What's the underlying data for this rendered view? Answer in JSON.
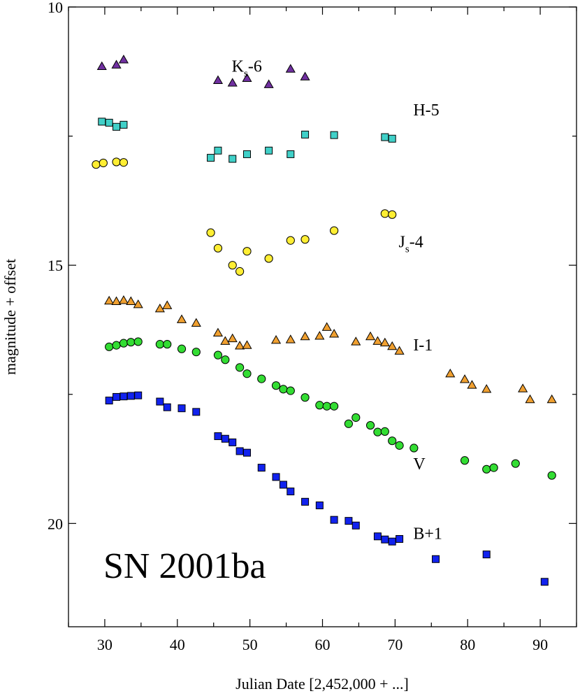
{
  "chart_data": {
    "type": "scatter",
    "title": "",
    "annotation": "SN 2001ba",
    "xlabel": "Julian Date [2,452,000 + ...]",
    "ylabel": "magnitude + offset",
    "xlim": [
      25,
      95
    ],
    "ylim": [
      22,
      10
    ],
    "y_inverted": true,
    "x_major_ticks": [
      30,
      40,
      50,
      60,
      70,
      80,
      90
    ],
    "x_tick_labels": [
      "30",
      "40",
      "50",
      "60",
      "70",
      "80",
      "90"
    ],
    "y_major_ticks": [
      10,
      15,
      20
    ],
    "y_tick_labels": [
      "10",
      "15",
      "20"
    ],
    "x_minor_step": 5,
    "y_minor_step": 2.5,
    "grid": false,
    "series": [
      {
        "name": "Ks-6",
        "label_main": "K",
        "label_sub": "s",
        "label_tail": "-6",
        "label_pos": [
          47.5,
          11.25
        ],
        "marker": "triangle",
        "color": "#7030a0",
        "x": [
          29.6,
          31.6,
          32.6,
          45.6,
          47.6,
          49.6,
          52.6,
          55.6,
          57.6
        ],
        "y": [
          11.15,
          11.12,
          11.02,
          11.42,
          11.47,
          11.38,
          11.5,
          11.2,
          11.35
        ]
      },
      {
        "name": "H-5",
        "label_main": "H-5",
        "label_pos": [
          72.5,
          12.1
        ],
        "marker": "square",
        "color": "#40d0c8",
        "x": [
          29.6,
          30.6,
          31.6,
          32.6,
          44.6,
          45.6,
          47.6,
          49.6,
          52.6,
          55.6,
          57.6,
          61.6,
          68.6,
          69.6
        ],
        "y": [
          12.22,
          12.24,
          12.32,
          12.28,
          12.92,
          12.78,
          12.94,
          12.85,
          12.78,
          12.85,
          12.47,
          12.48,
          12.52,
          12.55
        ]
      },
      {
        "name": "Js-4",
        "label_main": "J",
        "label_sub": "s",
        "label_tail": "-4",
        "label_pos": [
          70.5,
          14.65
        ],
        "marker": "circle",
        "color": "#ffee33",
        "x": [
          28.8,
          29.8,
          31.6,
          32.6,
          44.6,
          45.6,
          47.6,
          48.6,
          49.6,
          52.6,
          55.6,
          57.6,
          61.6,
          68.6,
          69.6
        ],
        "y": [
          13.05,
          13.02,
          13.0,
          13.01,
          14.37,
          14.67,
          15.0,
          15.12,
          14.73,
          14.87,
          14.52,
          14.5,
          14.33,
          14.0,
          14.02
        ]
      },
      {
        "name": "I-1",
        "label_main": "I-1",
        "label_pos": [
          72.5,
          16.65
        ],
        "marker": "triangle",
        "color": "#f0a030",
        "x": [
          30.6,
          31.6,
          32.6,
          33.6,
          34.6,
          37.6,
          38.6,
          40.6,
          42.6,
          45.6,
          46.6,
          47.6,
          48.6,
          49.6,
          53.6,
          55.6,
          57.6,
          59.6,
          60.6,
          61.6,
          64.6,
          66.6,
          67.6,
          68.6,
          69.6,
          70.6,
          77.6,
          79.6,
          80.6,
          82.6,
          87.6,
          88.6,
          91.6
        ],
        "y": [
          15.69,
          15.7,
          15.68,
          15.7,
          15.76,
          15.84,
          15.78,
          16.05,
          16.12,
          16.31,
          16.47,
          16.42,
          16.56,
          16.55,
          16.45,
          16.44,
          16.38,
          16.37,
          16.2,
          16.33,
          16.48,
          16.38,
          16.47,
          16.5,
          16.57,
          16.66,
          17.1,
          17.21,
          17.32,
          17.4,
          17.39,
          17.6,
          17.6
        ]
      },
      {
        "name": "V",
        "label_main": "V",
        "label_pos": [
          72.5,
          18.95
        ],
        "marker": "circle",
        "color": "#33dd33",
        "x": [
          30.6,
          31.6,
          32.6,
          33.6,
          34.6,
          37.6,
          38.6,
          40.6,
          42.6,
          45.6,
          46.6,
          48.6,
          49.6,
          51.6,
          53.6,
          54.6,
          55.6,
          57.6,
          59.6,
          60.6,
          61.6,
          63.6,
          64.6,
          66.6,
          67.6,
          68.6,
          69.6,
          70.6,
          72.6,
          79.6,
          82.6,
          83.6,
          86.6,
          91.6
        ],
        "y": [
          16.58,
          16.55,
          16.51,
          16.49,
          16.48,
          16.53,
          16.53,
          16.62,
          16.68,
          16.74,
          16.83,
          16.98,
          17.1,
          17.2,
          17.33,
          17.4,
          17.43,
          17.56,
          17.71,
          17.73,
          17.73,
          18.07,
          17.95,
          18.1,
          18.23,
          18.22,
          18.4,
          18.49,
          18.54,
          18.78,
          18.95,
          18.92,
          18.84,
          19.07
        ]
      },
      {
        "name": "B+1",
        "label_main": "B+1",
        "label_pos": [
          72.5,
          20.3
        ],
        "marker": "square",
        "color": "#1122ee",
        "x": [
          30.6,
          31.6,
          32.6,
          33.6,
          34.6,
          37.6,
          38.6,
          40.6,
          42.6,
          45.6,
          46.6,
          47.6,
          48.6,
          49.6,
          51.6,
          53.6,
          54.6,
          55.6,
          57.6,
          59.6,
          61.6,
          63.6,
          64.6,
          67.6,
          68.6,
          69.6,
          70.6,
          75.6,
          82.6,
          90.6
        ],
        "y": [
          17.62,
          17.55,
          17.54,
          17.53,
          17.52,
          17.64,
          17.75,
          17.77,
          17.84,
          18.31,
          18.36,
          18.43,
          18.6,
          18.63,
          18.92,
          19.1,
          19.25,
          19.38,
          19.58,
          19.65,
          19.93,
          19.95,
          20.04,
          20.25,
          20.31,
          20.35,
          20.3,
          20.69,
          20.6,
          21.13
        ]
      }
    ]
  }
}
